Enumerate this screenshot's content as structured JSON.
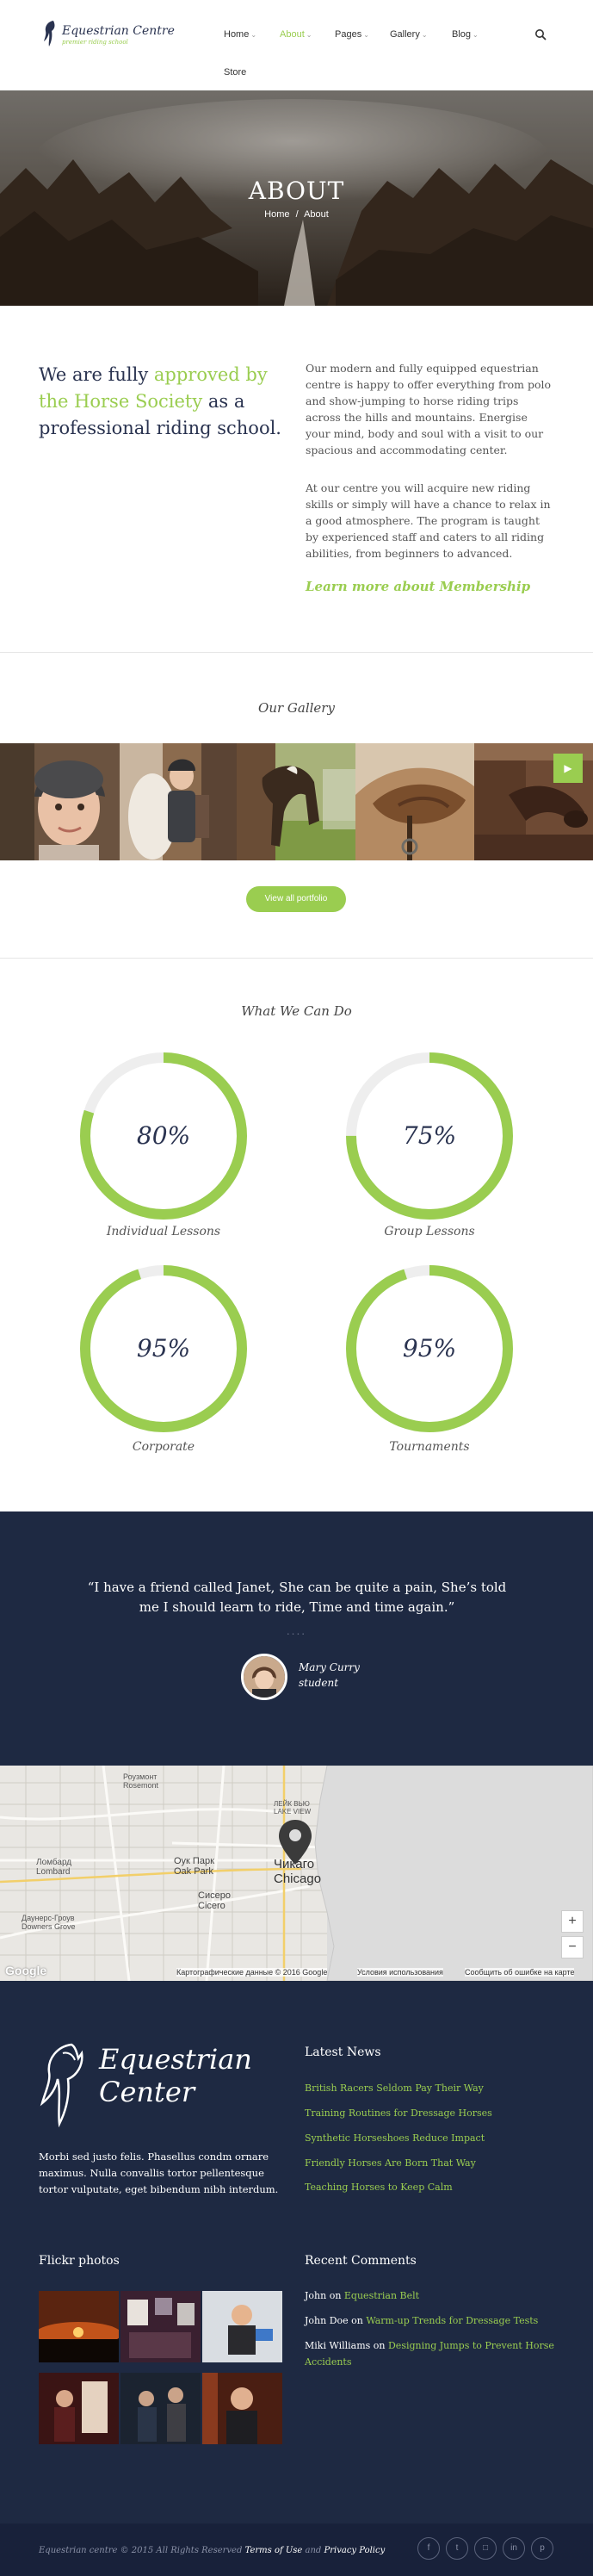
{
  "header": {
    "logo_title": "Equestrian Centre",
    "logo_sub": "premier riding school",
    "nav": [
      {
        "label": "Home",
        "dropdown": true
      },
      {
        "label": "About",
        "dropdown": true,
        "active": true
      },
      {
        "label": "Pages",
        "dropdown": true
      },
      {
        "label": "Gallery",
        "dropdown": true
      },
      {
        "label": "Blog",
        "dropdown": true
      },
      {
        "label": "Store",
        "dropdown": false
      }
    ]
  },
  "hero": {
    "title": "ABOUT",
    "crumb_home": "Home",
    "crumb_sep": "/",
    "crumb_current": "About"
  },
  "intro": {
    "lead_1": "We are fully ",
    "lead_hl": "approved by the Horse Society",
    "lead_2": " as a professional riding school.",
    "p1": "Our modern and fully equipped equestrian centre is happy to offer everything from polo and show-jumping to horse riding trips across the hills and mountains. Energise your mind, body and soul with a visit to our spacious and accommodating center.",
    "p2": "At our centre you will acquire new riding skills or simply will have a chance to relax in a good atmosphere. The program is taught by experienced staff and caters to all riding abilities, from beginners to advanced.",
    "link": "Learn more about Membership"
  },
  "gallery": {
    "title": "Our Gallery",
    "button": "View all portfolio",
    "next_icon": "chevron-right-icon"
  },
  "skills": {
    "title": "What We Can Do",
    "items": [
      {
        "label": "Individual Lessons",
        "value": 80,
        "pct": "80%"
      },
      {
        "label": "Group Lessons",
        "value": 75,
        "pct": "75%"
      },
      {
        "label": "Corporate",
        "value": 95,
        "pct": "95%"
      },
      {
        "label": "Tournaments",
        "value": 95,
        "pct": "95%"
      }
    ]
  },
  "testimonial": {
    "quote": "“I have a friend called Janet, She can be quite a pain, She’s told me I should learn to ride, Time and time again.”",
    "dots": "....",
    "name": "Mary Curry",
    "role": "student"
  },
  "map": {
    "labels": [
      "Роузмонт",
      "Rosemont",
      "Ломбард",
      "Lombard",
      "Оук Парк",
      "Oak Park",
      "Сисеро",
      "Cicero",
      "Даунерс-Гроув",
      "Downers Grove",
      "Чикаго",
      "Chicago",
      "ЛЕЙК ВЬЮ",
      "LAKE VIEW"
    ],
    "zoom_in": "+",
    "zoom_out": "−",
    "google": "Google",
    "attr_data": "Картографические данные © 2016 Google",
    "attr_terms": "Условия использования",
    "attr_report": "Сообщить об ошибке на карте"
  },
  "footer": {
    "brand_1": "Equestrian",
    "brand_2": "Center",
    "text": "Morbi sed justo felis. Phasellus condm ornare maximus. Nulla convallis tortor pellentesque tortor vulputate, eget bibendum nibh interdum.",
    "news_title": "Latest News",
    "news": [
      "British Racers Seldom Pay Their Way",
      "Training Routines for Dressage Horses",
      "Synthetic Horseshoes Reduce Impact",
      "Friendly Horses Are Born That Way",
      "Teaching Horses to Keep Calm"
    ],
    "flickr_title": "Flickr photos",
    "comments_title": "Recent Comments",
    "comments": [
      {
        "author": "John",
        "on": " on ",
        "post": "Equestrian Belt"
      },
      {
        "author": "John Doe",
        "on": " on ",
        "post": "Warm-up Trends for Dressage Tests"
      },
      {
        "author": "Miki Williams",
        "on": " on ",
        "post": "Designing Jumps to Prevent Horse Accidents"
      }
    ]
  },
  "bottom": {
    "copy": "Equestrian centre © 2015 All Rights Reserved ",
    "terms": "Terms of Use",
    "and": " and ",
    "privacy": "Privacy Policy",
    "social": [
      {
        "icon": "facebook-icon",
        "glyph": "f"
      },
      {
        "icon": "twitter-icon",
        "glyph": "t"
      },
      {
        "icon": "instagram-icon",
        "glyph": "□"
      },
      {
        "icon": "linkedin-icon",
        "glyph": "in"
      },
      {
        "icon": "pinterest-icon",
        "glyph": "p"
      }
    ]
  },
  "colors": {
    "accent": "#9acd50",
    "navy": "#1e2942",
    "ring_track": "#eeeeee"
  }
}
